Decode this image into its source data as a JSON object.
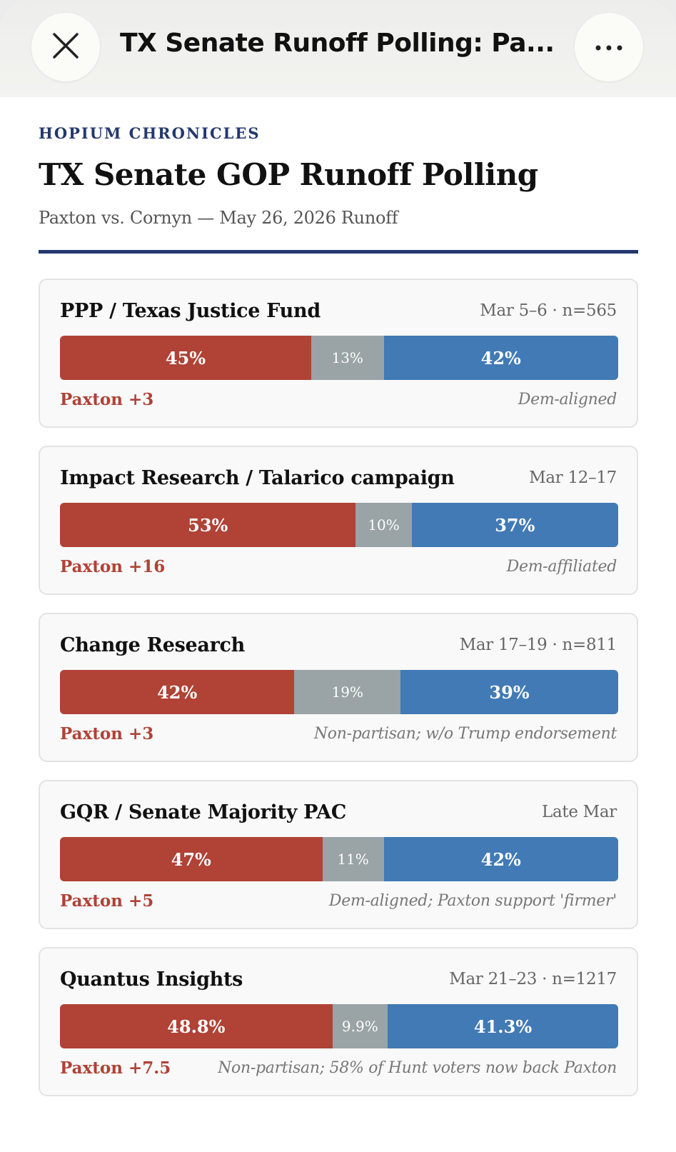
{
  "topbar": {
    "title": "TX Senate Runoff Polling: Pa..."
  },
  "header": {
    "kicker": "HOPIUM CHRONICLES",
    "title": "TX Senate GOP Runoff Polling",
    "subtitle": "Paxton vs. Cornyn — May 26, 2026 Runoff"
  },
  "colors": {
    "paxton": "#b04236",
    "undecided": "#9aa3a6",
    "cornyn": "#417ab5",
    "accent": "#24386e"
  },
  "polls": [
    {
      "pollster": "PPP / Texas Justice Fund",
      "meta": "Mar 5–6 · n=565",
      "paxton": 45,
      "paxton_label": "45%",
      "undecided": 13,
      "undecided_label": "13%",
      "cornyn": 42,
      "cornyn_label": "42%",
      "margin": "Paxton +3",
      "note": "Dem-aligned"
    },
    {
      "pollster": "Impact Research / Talarico campaign",
      "meta": "Mar 12–17",
      "paxton": 53,
      "paxton_label": "53%",
      "undecided": 10,
      "undecided_label": "10%",
      "cornyn": 37,
      "cornyn_label": "37%",
      "margin": "Paxton +16",
      "note": "Dem-affiliated"
    },
    {
      "pollster": "Change Research",
      "meta": "Mar 17–19 · n=811",
      "paxton": 42,
      "paxton_label": "42%",
      "undecided": 19,
      "undecided_label": "19%",
      "cornyn": 39,
      "cornyn_label": "39%",
      "margin": "Paxton +3",
      "note": "Non-partisan; w/o Trump endorsement"
    },
    {
      "pollster": "GQR / Senate Majority PAC",
      "meta": "Late Mar",
      "paxton": 47,
      "paxton_label": "47%",
      "undecided": 11,
      "undecided_label": "11%",
      "cornyn": 42,
      "cornyn_label": "42%",
      "margin": "Paxton +5",
      "note": "Dem-aligned; Paxton support 'firmer'"
    },
    {
      "pollster": "Quantus Insights",
      "meta": "Mar 21–23 · n=1217",
      "paxton": 48.8,
      "paxton_label": "48.8%",
      "undecided": 9.9,
      "undecided_label": "9.9%",
      "cornyn": 41.3,
      "cornyn_label": "41.3%",
      "margin": "Paxton +7.5",
      "note": "Non-partisan; 58% of Hunt voters now back Paxton"
    }
  ]
}
